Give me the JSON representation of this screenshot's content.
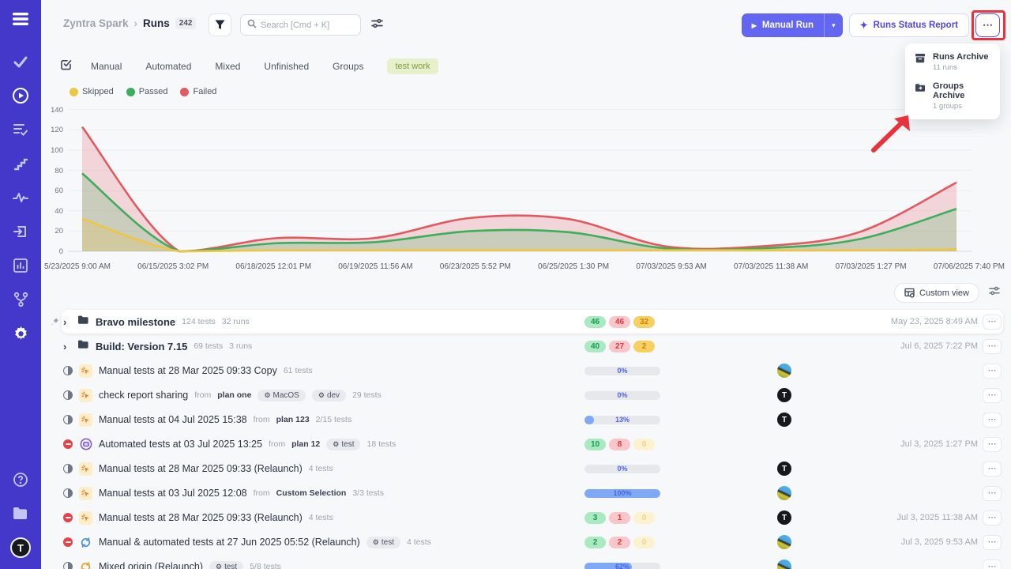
{
  "ui": {
    "more_glyph": "⋯",
    "chevron_glyph": "›",
    "caret_glyph": "▾",
    "play_glyph": "▶",
    "sparkle_glyph": "✦"
  },
  "header": {
    "project": "Zyntra Spark",
    "separator": "›",
    "page": "Runs",
    "count": "242",
    "search_placeholder": "Search [Cmd + K]",
    "manual_run": "Manual Run",
    "runs_status_report": "Runs Status Report"
  },
  "menu": {
    "items": [
      {
        "label": "Runs Archive",
        "sub": "11 runs"
      },
      {
        "label": "Groups Archive",
        "sub": "1 groups"
      }
    ]
  },
  "tabs": {
    "items": [
      "Manual",
      "Automated",
      "Mixed",
      "Unfinished",
      "Groups"
    ],
    "highlight": "test work"
  },
  "chart_data": {
    "type": "area",
    "x": [
      "5/23/2025 9:00 AM",
      "06/15/2025 3:02 PM",
      "06/18/2025 12:01 PM",
      "06/19/2025 11:56 AM",
      "06/23/2025 5:52 PM",
      "06/25/2025 1:30 PM",
      "07/03/2025 9:53 AM",
      "07/03/2025 11:38 AM",
      "07/03/2025 1:27 PM",
      "07/06/2025 7:40 PM"
    ],
    "series": [
      {
        "name": "Skipped",
        "color": "#eec643",
        "values": [
          32,
          0,
          1,
          1,
          1,
          1,
          1,
          1,
          1,
          2
        ]
      },
      {
        "name": "Passed",
        "color": "#3cae5c",
        "values": [
          77,
          0,
          8,
          9,
          20,
          19,
          3,
          3,
          12,
          42
        ]
      },
      {
        "name": "Failed",
        "color": "#e25a60",
        "values": [
          123,
          0,
          13,
          13,
          33,
          32,
          5,
          5,
          19,
          68
        ]
      }
    ],
    "ylim": [
      0,
      140
    ],
    "yticks": [
      0,
      20,
      40,
      60,
      80,
      100,
      120,
      140
    ],
    "grid": true,
    "legend_position": "top-left"
  },
  "viewbar": {
    "custom_view": "Custom view"
  },
  "rows": [
    {
      "title": "Bravo milestone",
      "tests": "124 tests",
      "runs": "32 runs",
      "badges": [
        "46",
        "46",
        "32"
      ],
      "date": "May 23, 2025 8:49 AM"
    },
    {
      "title": "Build: Version 7.15",
      "tests": "69 tests",
      "runs": "3 runs",
      "badges": [
        "40",
        "27",
        "2"
      ],
      "date": "Jul 6, 2025 7:22 PM"
    },
    {
      "title": "Manual tests at 28 Mar 2025 09:33 Copy",
      "tests": "61 tests",
      "progress": "0%"
    },
    {
      "title": "check report sharing",
      "from_label": "from",
      "from": "plan one",
      "tags": [
        "MacOS",
        "dev"
      ],
      "tests": "29 tests",
      "progress": "0%"
    },
    {
      "title": "Manual tests at 04 Jul 2025 15:38",
      "from_label": "from",
      "from": "plan 123",
      "tests": "2/15 tests",
      "progress": "13%"
    },
    {
      "title": "Automated tests at 03 Jul 2025 13:25",
      "from_label": "from",
      "from": "plan 12",
      "tags": [
        "test"
      ],
      "tests": "18 tests",
      "badges": [
        "10",
        "8",
        "0"
      ],
      "date": "Jul 3, 2025 1:27 PM"
    },
    {
      "title": "Manual tests at 28 Mar 2025 09:33 (Relaunch)",
      "tests": "4 tests",
      "progress": "0%"
    },
    {
      "title": "Manual tests at 03 Jul 2025 12:08",
      "from_label": "from",
      "from": "Custom Selection",
      "tests": "3/3 tests",
      "progress": "100%"
    },
    {
      "title": "Manual tests at 28 Mar 2025 09:33 (Relaunch)",
      "tests": "4 tests",
      "badges": [
        "3",
        "1",
        "0"
      ],
      "date": "Jul 3, 2025 11:38 AM"
    },
    {
      "title": "Manual & automated tests at 27 Jun 2025 05:52 (Relaunch)",
      "tags": [
        "test"
      ],
      "tests": "4 tests",
      "badges": [
        "2",
        "2",
        "0"
      ],
      "date": "Jul 3, 2025 9:53 AM"
    },
    {
      "title": "Mixed origin (Relaunch)",
      "tags": [
        "test"
      ],
      "tests": "5/8 tests",
      "progress": "62%"
    }
  ],
  "avatar": {
    "letter": "T"
  },
  "tag_gear": "⚙"
}
